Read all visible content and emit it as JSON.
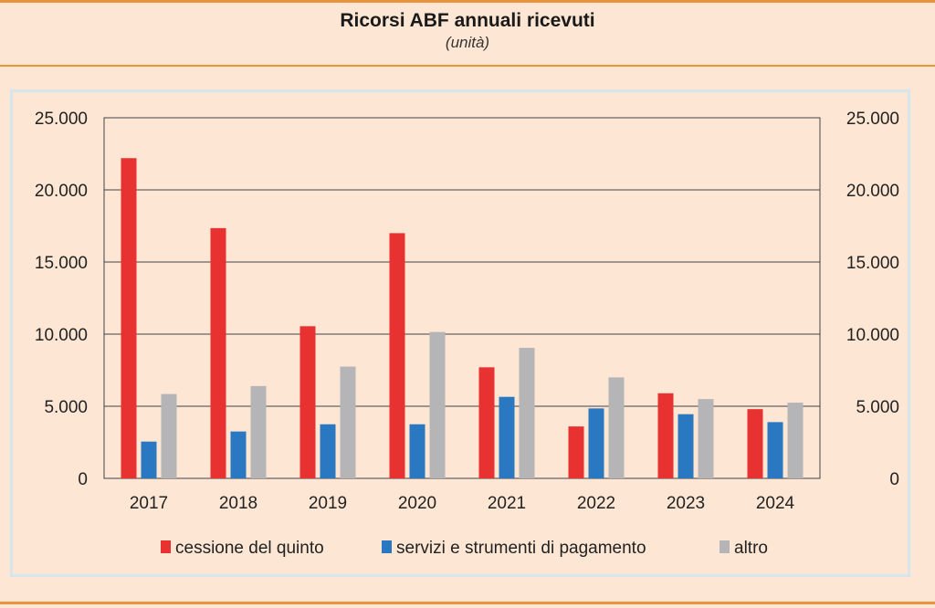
{
  "header": {
    "title": "Ricorsi ABF annuali ricevuti",
    "subtitle": "(unità)"
  },
  "chart_data": {
    "type": "bar",
    "title": "Ricorsi ABF annuali ricevuti",
    "subtitle": "(unità)",
    "categories": [
      "2017",
      "2018",
      "2019",
      "2020",
      "2021",
      "2022",
      "2023",
      "2024"
    ],
    "series": [
      {
        "name": "cessione del quinto",
        "color": "#e83232",
        "values": [
          22200,
          17350,
          10550,
          17000,
          7700,
          3600,
          5900,
          4800
        ]
      },
      {
        "name": "servizi e strumenti di pagamento",
        "color": "#2b78c2",
        "values": [
          2550,
          3250,
          3750,
          3750,
          5650,
          4850,
          4450,
          3900
        ]
      },
      {
        "name": "altro",
        "color": "#b5b5b8",
        "values": [
          5850,
          6400,
          7750,
          10150,
          9050,
          7000,
          5500,
          5250
        ]
      }
    ],
    "ylim": [
      0,
      25000
    ],
    "yticks": [
      "0",
      "5.000",
      "10.000",
      "15.000",
      "20.000",
      "25.000"
    ],
    "ytick_values": [
      0,
      5000,
      10000,
      15000,
      20000,
      25000
    ],
    "grid": true,
    "legend_position": "bottom"
  }
}
